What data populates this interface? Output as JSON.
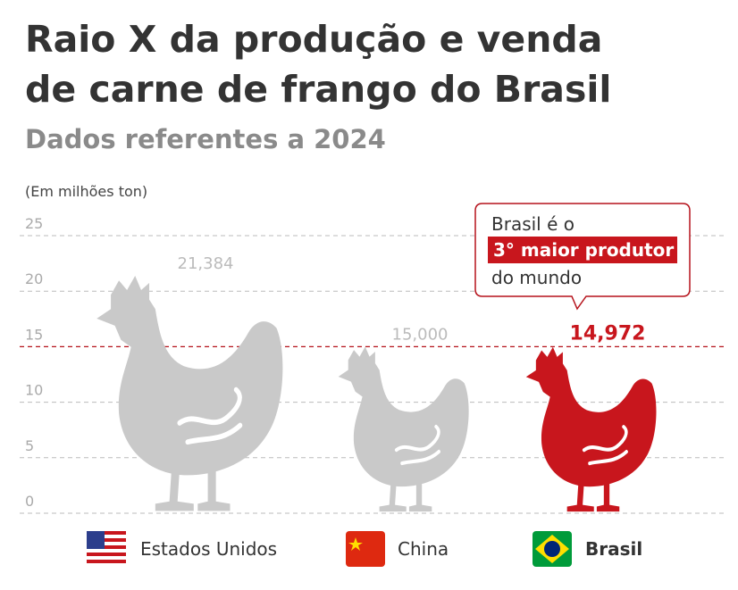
{
  "chart_data": {
    "type": "pictogram",
    "title": [
      "Raio X da produção e venda",
      "de carne de frango do Brasil"
    ],
    "subtitle": "Dados referentes a 2024",
    "y_label": "(Em milhões ton)",
    "categories": [
      "Estados Unidos",
      "China",
      "Brasil"
    ],
    "values": [
      21.384,
      15.0,
      14.972
    ],
    "value_labels": [
      "21,384",
      "15,000",
      "14,972"
    ],
    "colors": [
      "#c9c9c9",
      "#c9c9c9",
      "#c8161d"
    ],
    "ylim": [
      0,
      25
    ],
    "yticks": [
      0,
      5,
      10,
      15,
      20,
      25
    ],
    "grid": true,
    "reference_line": {
      "value": 15,
      "color": "#b5121b"
    },
    "annotation": [
      "Brasil é o",
      "3° maior produtor",
      "do mundo"
    ]
  }
}
